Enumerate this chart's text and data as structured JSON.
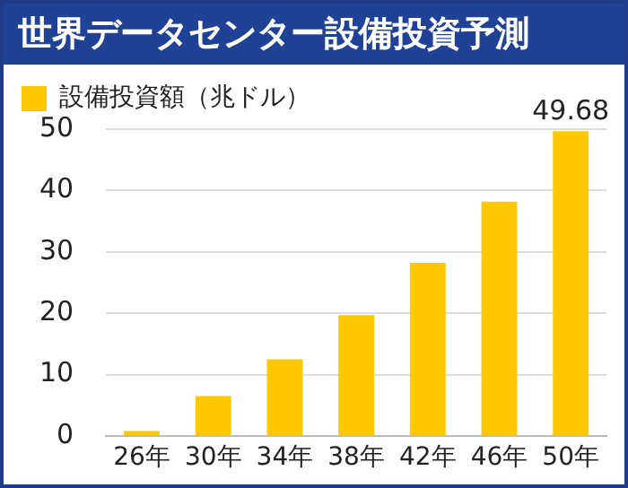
{
  "chart_data": {
    "type": "bar",
    "title": "世界データセンター設備投資予測",
    "categories": [
      "26年",
      "30年",
      "34年",
      "38年",
      "42年",
      "46年",
      "50年"
    ],
    "series": [
      {
        "name": "設備投資額（兆ドル）",
        "color": "#ffc800",
        "values": [
          0.8,
          6.5,
          12.5,
          19.7,
          28.2,
          38.2,
          49.68
        ],
        "value_labels": [
          null,
          null,
          null,
          null,
          null,
          null,
          "49.68"
        ]
      }
    ],
    "ylim": [
      0,
      50
    ],
    "yticks": [
      0,
      10,
      20,
      30,
      40,
      50
    ],
    "grid": "y",
    "legend": "top left"
  }
}
